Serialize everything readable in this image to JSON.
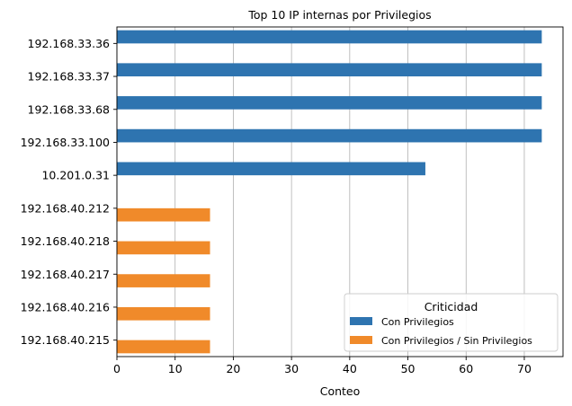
{
  "chart_data": {
    "type": "bar",
    "orientation": "horizontal",
    "title": "Top 10 IP internas por Privilegios",
    "xlabel": "Conteo",
    "ylabel": "",
    "xlim": [
      0,
      76.65
    ],
    "xticks": [
      0,
      10,
      20,
      30,
      40,
      50,
      60,
      70
    ],
    "grid": "x",
    "legend_position": "lower-right",
    "legend_title": "Criticidad",
    "categories": [
      "192.168.33.36",
      "192.168.33.37",
      "192.168.33.68",
      "192.168.33.100",
      "10.201.0.31",
      "192.168.40.212",
      "192.168.40.218",
      "192.168.40.217",
      "192.168.40.216",
      "192.168.40.215"
    ],
    "series": [
      {
        "name": "Con Privilegios",
        "color": "#2e74b0",
        "values": [
          73,
          73,
          73,
          73,
          53,
          0,
          0,
          0,
          0,
          0
        ]
      },
      {
        "name": "Con Privilegios / Sin Privilegios",
        "color": "#f08a2a",
        "values": [
          0,
          0,
          0,
          0,
          0,
          16,
          16,
          16,
          16,
          16
        ]
      }
    ]
  }
}
